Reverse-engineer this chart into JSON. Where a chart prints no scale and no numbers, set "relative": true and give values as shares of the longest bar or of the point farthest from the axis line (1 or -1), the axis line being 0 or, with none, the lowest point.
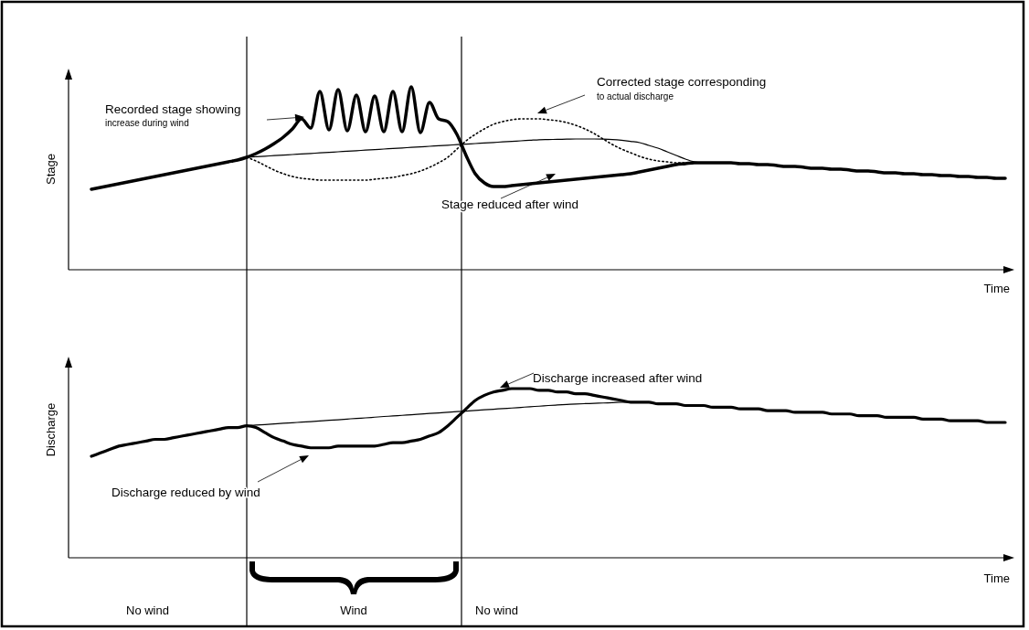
{
  "chart_data": [
    {
      "type": "line",
      "xlabel": "Time",
      "ylabel": "Stage",
      "relative": true,
      "categories": [
        null,
        null,
        null,
        null,
        null,
        null,
        null,
        null,
        null,
        null,
        null,
        null,
        null,
        null,
        null,
        null,
        null,
        null,
        null,
        null,
        null,
        null,
        null,
        null,
        null,
        null,
        null,
        null,
        null,
        null,
        null,
        null,
        null,
        null,
        null,
        null,
        null,
        null,
        null,
        null,
        null,
        null,
        null,
        null,
        null,
        null,
        null,
        null,
        null,
        null,
        null,
        null,
        null,
        null,
        null,
        null,
        null,
        null,
        null,
        null,
        null,
        null,
        null,
        null,
        null,
        null,
        null,
        null,
        null,
        null,
        null,
        null,
        null,
        null,
        null,
        null,
        null,
        null,
        null,
        null,
        null,
        null,
        null,
        null,
        null,
        null,
        null,
        null,
        null,
        null,
        null,
        null,
        null,
        null,
        null,
        null,
        null,
        null,
        null,
        null,
        null
      ],
      "series": [
        {
          "color": "#000000",
          "values": [
            0.44,
            0.45,
            0.46,
            0.47,
            0.48,
            0.49,
            0.5,
            0.51,
            0.52,
            0.53,
            0.54,
            0.55,
            0.56,
            0.57,
            0.58,
            0.59,
            0.6,
            0.615,
            0.635,
            0.66,
            0.69,
            0.725,
            0.77,
            0.825,
            0.775,
            0.975,
            0.765,
            0.985,
            0.76,
            0.955,
            0.755,
            0.95,
            0.755,
            0.975,
            0.755,
            1,
            0.75,
            0.915,
            0.825,
            0.81,
            0.74,
            0.625,
            0.525,
            0.475,
            0.455,
            0.455,
            0.46,
            0.465,
            0.47,
            0.475,
            0.48,
            0.485,
            0.49,
            0.495,
            0.5,
            0.505,
            0.51,
            0.515,
            0.52,
            0.525,
            0.535,
            0.545,
            0.555,
            0.565,
            0.575,
            0.58,
            0.585,
            0.585,
            0.585,
            0.585,
            0.585,
            0.58,
            0.58,
            0.575,
            0.575,
            0.57,
            0.565,
            0.565,
            0.56,
            0.555,
            0.555,
            0.55,
            0.55,
            0.545,
            0.54,
            0.54,
            0.535,
            0.53,
            0.53,
            0.525,
            0.525,
            0.52,
            0.52,
            0.515,
            0.515,
            0.51,
            0.51,
            0.505,
            0.505,
            0.5,
            0.5
          ]
        },
        {
          "color": "#000000",
          "values": [
            null,
            null,
            null,
            null,
            null,
            null,
            null,
            null,
            null,
            null,
            null,
            null,
            null,
            null,
            null,
            null,
            null,
            0.615,
            0.618,
            0.621,
            0.624,
            0.627,
            0.63,
            0.633,
            0.636,
            0.639,
            0.642,
            0.645,
            0.648,
            0.651,
            0.654,
            0.657,
            0.66,
            0.663,
            0.666,
            0.669,
            0.672,
            0.675,
            0.678,
            0.681,
            0.684,
            0.687,
            0.69,
            0.693,
            0.696,
            0.699,
            0.702,
            0.705,
            0.708,
            0.711,
            0.712,
            0.713,
            0.714,
            0.715,
            0.715,
            0.715,
            0.714,
            0.712,
            0.708,
            0.702,
            0.695,
            0.68,
            0.665,
            0.645,
            0.625,
            0.605,
            0.59,
            0.585,
            0.585,
            null,
            null,
            null,
            null,
            null,
            null,
            null,
            null,
            null,
            null,
            null,
            null,
            null,
            null,
            null,
            null,
            null,
            null,
            null,
            null,
            null,
            null,
            null,
            null,
            null,
            null,
            null,
            null,
            null,
            null,
            null,
            null
          ]
        },
        {
          "color": "#000000",
          "line_style": "dotted",
          "values": [
            null,
            null,
            null,
            null,
            null,
            null,
            null,
            null,
            null,
            null,
            null,
            null,
            null,
            null,
            null,
            null,
            null,
            0.615,
            0.595,
            0.57,
            0.545,
            0.525,
            0.51,
            0.5,
            0.495,
            0.49,
            0.49,
            0.49,
            0.49,
            0.49,
            0.49,
            0.495,
            0.5,
            0.505,
            0.515,
            0.525,
            0.54,
            0.56,
            0.585,
            0.615,
            0.66,
            0.705,
            0.74,
            0.77,
            0.795,
            0.81,
            0.82,
            0.825,
            0.825,
            0.825,
            0.82,
            0.815,
            0.805,
            0.79,
            0.77,
            0.745,
            0.715,
            0.685,
            0.66,
            0.64,
            0.62,
            0.605,
            0.595,
            0.59,
            0.585,
            0.585,
            0.585,
            null,
            null,
            null,
            null,
            null,
            null,
            null,
            null,
            null,
            null,
            null,
            null,
            null,
            null,
            null,
            null,
            null,
            null,
            null,
            null,
            null,
            null,
            null,
            null,
            null,
            null,
            null,
            null,
            null,
            null,
            null,
            null,
            null,
            null
          ]
        }
      ],
      "annotations": [
        "Recorded stage showing",
        "increase during wind",
        "Corrected stage corresponding",
        "to actual discharge",
        "Stage reduced after wind"
      ]
    },
    {
      "type": "line",
      "xlabel": "Time",
      "ylabel": "Discharge",
      "relative": true,
      "categories": [
        null,
        null,
        null,
        null,
        null,
        null,
        null,
        null,
        null,
        null,
        null,
        null,
        null,
        null,
        null,
        null,
        null,
        null,
        null,
        null,
        null,
        null,
        null,
        null,
        null,
        null,
        null,
        null,
        null,
        null,
        null,
        null,
        null,
        null,
        null,
        null,
        null,
        null,
        null,
        null,
        null,
        null,
        null,
        null,
        null,
        null,
        null,
        null,
        null,
        null,
        null,
        null,
        null,
        null,
        null,
        null,
        null,
        null,
        null,
        null,
        null,
        null,
        null,
        null,
        null,
        null,
        null,
        null,
        null,
        null,
        null,
        null,
        null,
        null,
        null,
        null,
        null,
        null,
        null,
        null,
        null,
        null,
        null,
        null,
        null,
        null,
        null,
        null,
        null,
        null,
        null,
        null,
        null,
        null,
        null,
        null,
        null,
        null,
        null,
        null,
        null
      ],
      "series": [
        {
          "color": "#000000",
          "values": [
            0.6,
            0.62,
            0.64,
            0.66,
            0.67,
            0.68,
            0.69,
            0.7,
            0.7,
            0.71,
            0.72,
            0.73,
            0.74,
            0.75,
            0.76,
            0.77,
            0.77,
            0.78,
            0.77,
            0.74,
            0.71,
            0.69,
            0.67,
            0.66,
            0.65,
            0.65,
            0.65,
            0.66,
            0.66,
            0.66,
            0.66,
            0.66,
            0.67,
            0.68,
            0.68,
            0.69,
            0.7,
            0.72,
            0.74,
            0.78,
            0.83,
            0.88,
            0.93,
            0.96,
            0.98,
            0.99,
            1,
            1,
            1,
            0.99,
            0.99,
            0.98,
            0.98,
            0.97,
            0.97,
            0.96,
            0.95,
            0.94,
            0.93,
            0.92,
            0.92,
            0.92,
            0.91,
            0.91,
            0.91,
            0.9,
            0.9,
            0.9,
            0.89,
            0.89,
            0.89,
            0.88,
            0.88,
            0.88,
            0.87,
            0.87,
            0.87,
            0.86,
            0.86,
            0.86,
            0.86,
            0.85,
            0.85,
            0.85,
            0.84,
            0.84,
            0.84,
            0.83,
            0.83,
            0.83,
            0.83,
            0.82,
            0.82,
            0.82,
            0.81,
            0.81,
            0.81,
            0.81,
            0.8,
            0.8,
            0.8
          ]
        },
        {
          "color": "#000000",
          "values": [
            null,
            null,
            null,
            null,
            null,
            null,
            null,
            null,
            null,
            null,
            null,
            null,
            null,
            null,
            null,
            null,
            null,
            0.78,
            0.784,
            0.787,
            0.791,
            0.795,
            0.798,
            0.802,
            0.805,
            0.809,
            0.813,
            0.816,
            0.82,
            0.824,
            0.827,
            0.831,
            0.835,
            0.838,
            0.842,
            0.845,
            0.849,
            0.853,
            0.856,
            0.86,
            0.864,
            0.867,
            0.871,
            0.875,
            0.878,
            0.882,
            0.885,
            0.889,
            0.893,
            0.896,
            0.9,
            0.903,
            0.906,
            0.909,
            0.911,
            0.913,
            0.915,
            0.917,
            0.919,
            0.92,
            null,
            null,
            null,
            null,
            null,
            null,
            null,
            null,
            null,
            null,
            null,
            null,
            null,
            null,
            null,
            null,
            null,
            null,
            null,
            null,
            null,
            null,
            null,
            null,
            null,
            null,
            null,
            null,
            null,
            null,
            null,
            null,
            null,
            null,
            null,
            null,
            null,
            null,
            null,
            null,
            null
          ]
        }
      ],
      "annotations": [
        "Discharge increased after wind",
        "Discharge reduced by wind",
        "No wind",
        "Wind",
        "No wind"
      ]
    }
  ]
}
